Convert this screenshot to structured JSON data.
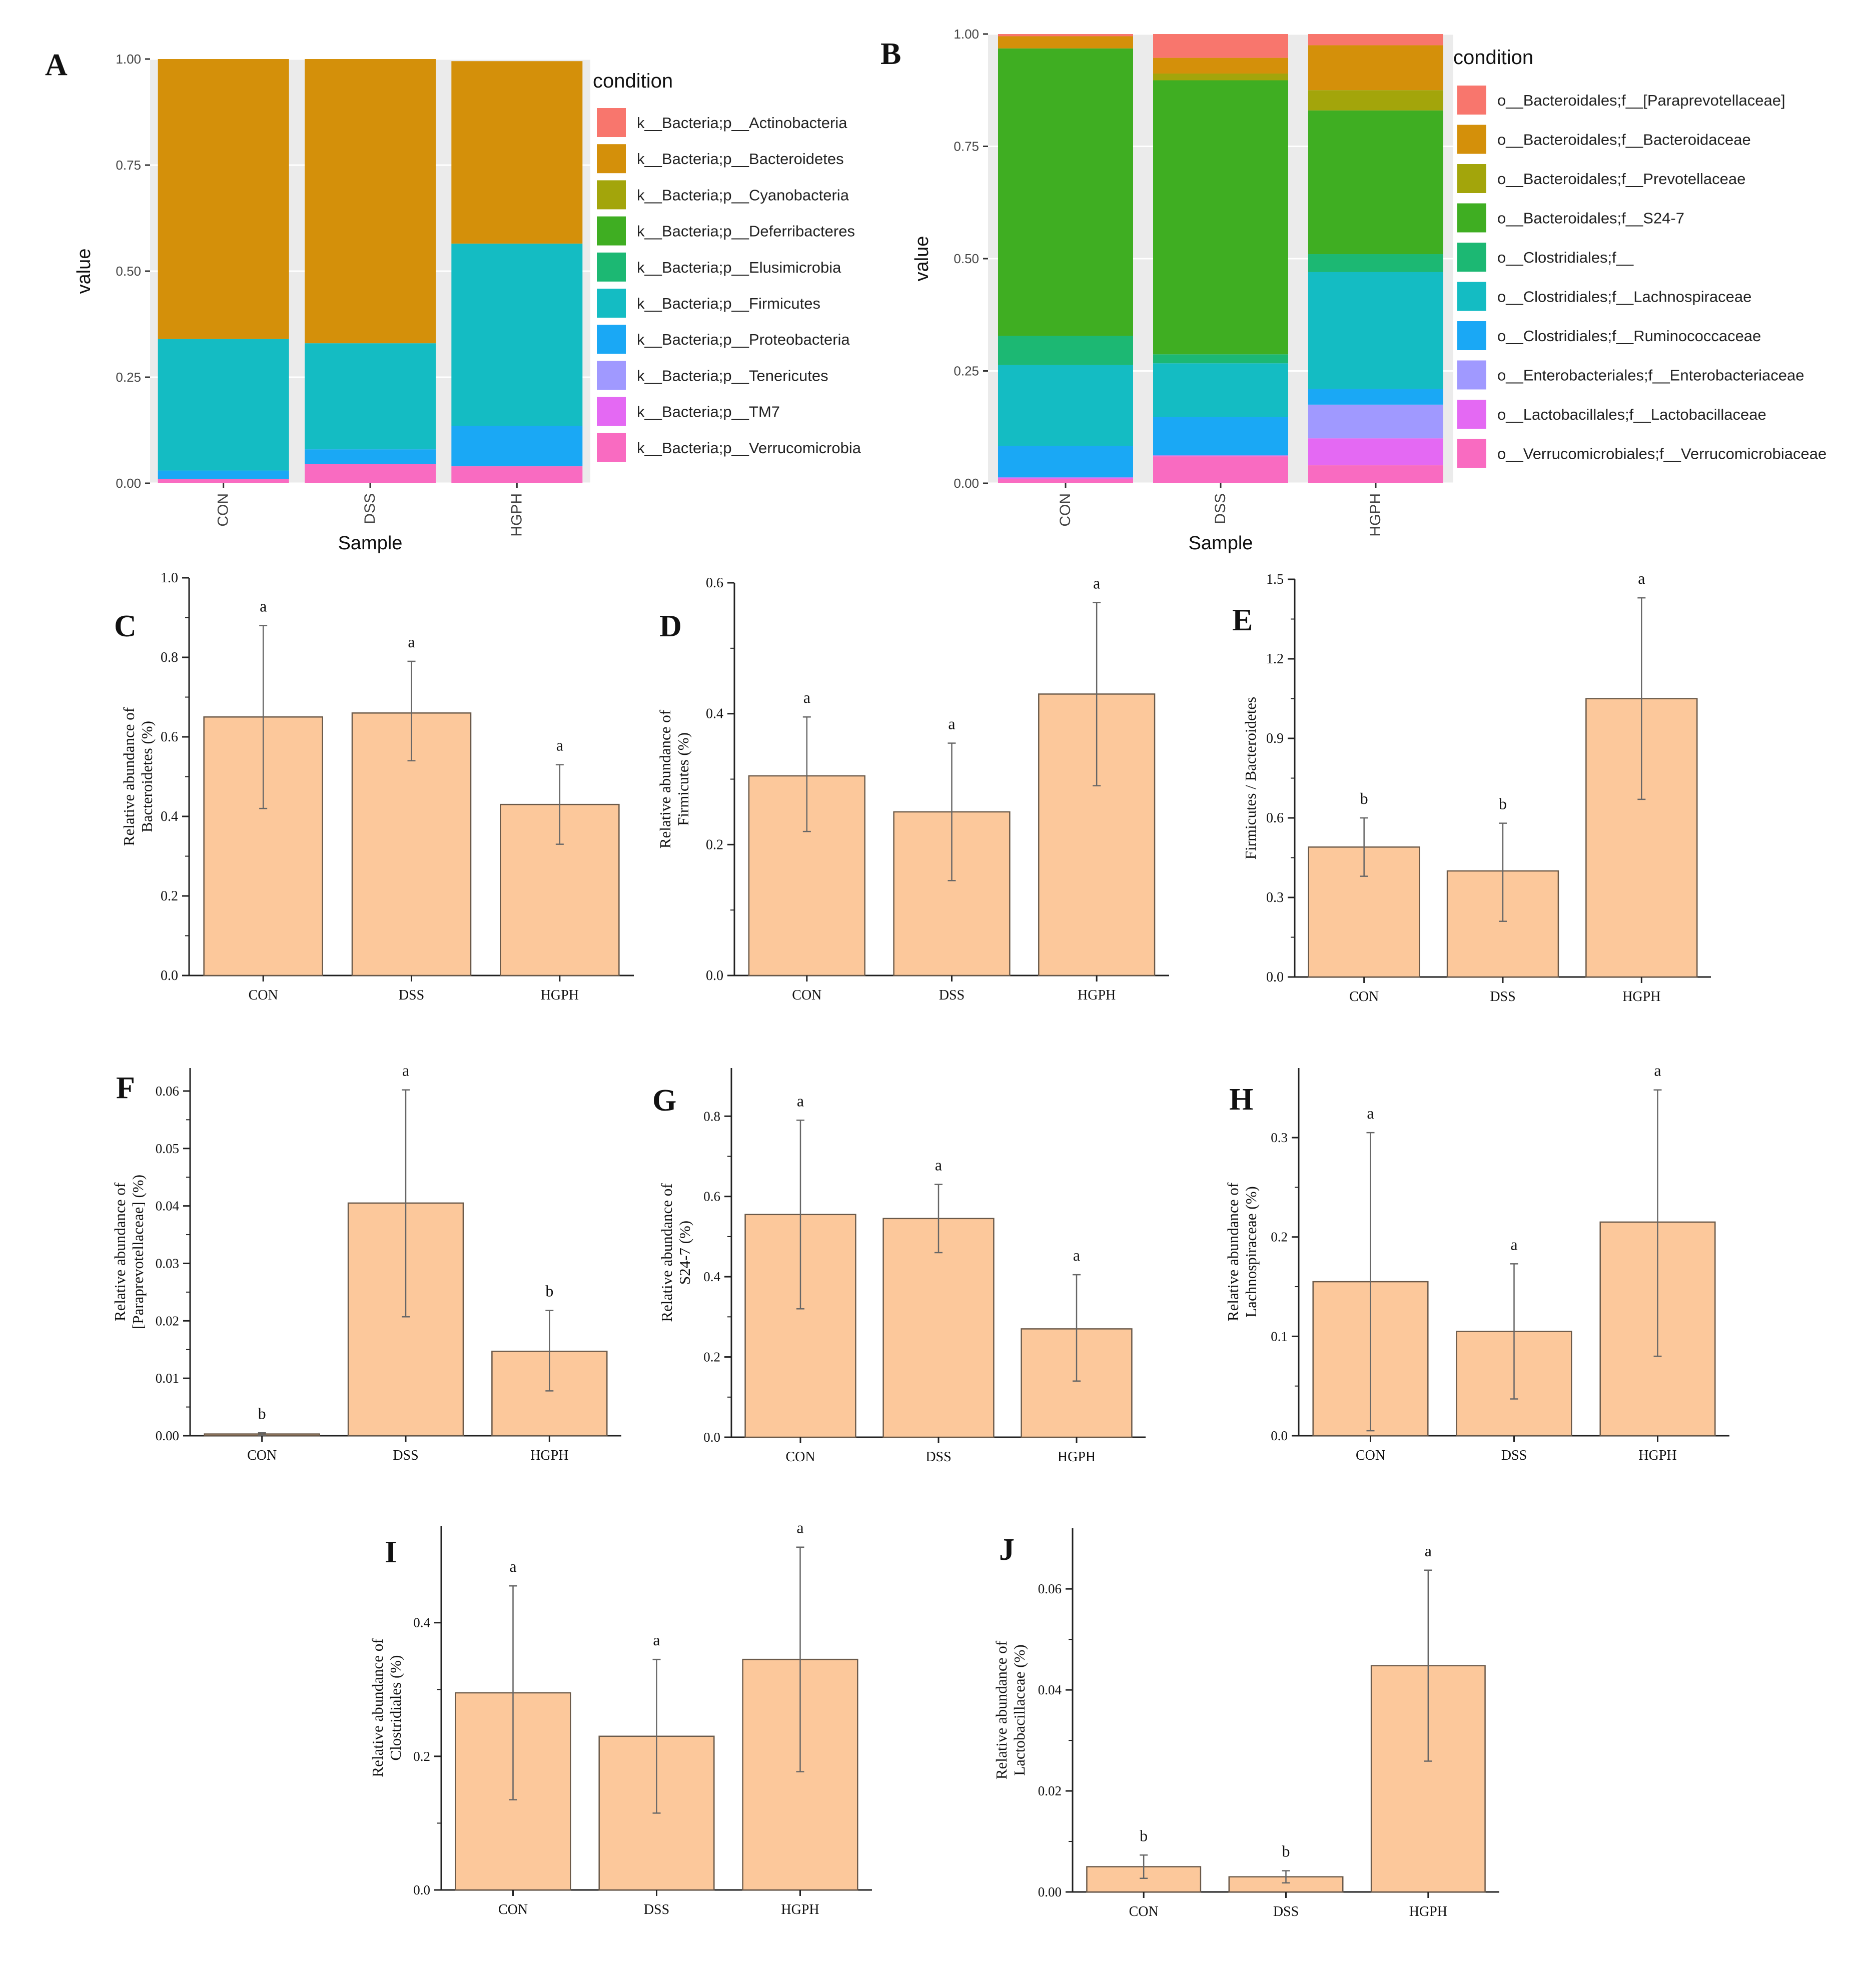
{
  "colors": {
    "orange_bar": "#fcc89b",
    "bar_edge": "#6b5a4a",
    "axis": "#222222"
  },
  "chart_data": [
    {
      "id": "A",
      "type": "stacked-bar",
      "panel_label": "A",
      "xlabel": "Sample",
      "ylabel": "value",
      "ylim": [
        0,
        1
      ],
      "yticks": [
        "0.00",
        "0.25",
        "0.50",
        "0.75",
        "1.00"
      ],
      "categories": [
        "CON",
        "DSS",
        "HGPH"
      ],
      "legend_title": "condition",
      "series": [
        {
          "name": "k__Bacteria;p__Verrucomicrobia",
          "color": "#f96bc1",
          "values": [
            0.01,
            0.045,
            0.04
          ]
        },
        {
          "name": "k__Bacteria;p__TM7",
          "color": "#e469f3",
          "values": [
            0.0,
            0.0,
            0.0
          ]
        },
        {
          "name": "k__Bacteria;p__Tenericutes",
          "color": "#a099ff",
          "values": [
            0.0,
            0.0,
            0.0
          ]
        },
        {
          "name": "k__Bacteria;p__Proteobacteria",
          "color": "#1aa8f5",
          "values": [
            0.02,
            0.035,
            0.095
          ]
        },
        {
          "name": "k__Bacteria;p__Firmicutes",
          "color": "#14bcc3",
          "values": [
            0.31,
            0.25,
            0.43
          ]
        },
        {
          "name": "k__Bacteria;p__Elusimicrobia",
          "color": "#1cb873",
          "values": [
            0.0,
            0.0,
            0.0
          ]
        },
        {
          "name": "k__Bacteria;p__Deferribacteres",
          "color": "#3fae22",
          "values": [
            0.0,
            0.0,
            0.0
          ]
        },
        {
          "name": "k__Bacteria;p__Cyanobacteria",
          "color": "#a3a50b",
          "values": [
            0.0,
            0.0,
            0.0
          ]
        },
        {
          "name": "k__Bacteria;p__Bacteroidetes",
          "color": "#d4900a",
          "values": [
            0.66,
            0.67,
            0.43
          ]
        },
        {
          "name": "k__Bacteria;p__Actinobacteria",
          "color": "#f8766d",
          "values": [
            0.0,
            0.0,
            0.0
          ]
        }
      ]
    },
    {
      "id": "B",
      "type": "stacked-bar",
      "panel_label": "B",
      "xlabel": "Sample",
      "ylabel": "value",
      "ylim": [
        0,
        1
      ],
      "yticks": [
        "0.00",
        "0.25",
        "0.50",
        "0.75",
        "1.00"
      ],
      "categories": [
        "CON",
        "DSS",
        "HGPH"
      ],
      "legend_title": "condition",
      "series": [
        {
          "name": "o__Verrucomicrobiales;f__Verrucomicrobiaceae",
          "color": "#f96bc1",
          "values": [
            0.01,
            0.06,
            0.04
          ]
        },
        {
          "name": "o__Lactobacillales;f__Lactobacillaceae",
          "color": "#e469f3",
          "values": [
            0.003,
            0.002,
            0.06
          ]
        },
        {
          "name": "o__Enterobacteriales;f__Enterobacteriaceae",
          "color": "#a099ff",
          "values": [
            0.0,
            0.0,
            0.075
          ]
        },
        {
          "name": "o__Clostridiales;f__Ruminococcaceae",
          "color": "#1aa8f5",
          "values": [
            0.07,
            0.085,
            0.035
          ]
        },
        {
          "name": "o__Clostridiales;f__Lachnospiraceae",
          "color": "#14bcc3",
          "values": [
            0.18,
            0.12,
            0.26
          ]
        },
        {
          "name": "o__Clostridiales;f__",
          "color": "#1cb873",
          "values": [
            0.065,
            0.02,
            0.04
          ]
        },
        {
          "name": "o__Bacteroidales;f__S24-7",
          "color": "#3fae22",
          "values": [
            0.64,
            0.61,
            0.32
          ]
        },
        {
          "name": "o__Bacteroidales;f__Prevotellaceae",
          "color": "#a3a50b",
          "values": [
            0.0,
            0.015,
            0.045
          ]
        },
        {
          "name": "o__Bacteroidales;f__Bacteroidaceae",
          "color": "#d4900a",
          "values": [
            0.027,
            0.035,
            0.1
          ]
        },
        {
          "name": "o__Bacteroidales;f__[Paraprevotellaceae]",
          "color": "#f8766d",
          "values": [
            0.005,
            0.053,
            0.025
          ]
        }
      ]
    },
    {
      "id": "C",
      "type": "bar",
      "panel_label": "C",
      "ylabel": [
        "Relative abundance of",
        "Bacteroidetes (%)"
      ],
      "ylim": [
        0,
        1.0
      ],
      "yticks": [
        "0.0",
        "0.2",
        "0.4",
        "0.6",
        "0.8",
        "1.0"
      ],
      "categories": [
        "CON",
        "DSS",
        "HGPH"
      ],
      "values": [
        0.65,
        0.66,
        0.43
      ],
      "err_high": [
        0.88,
        0.79,
        0.53
      ],
      "err_low": [
        0.42,
        0.54,
        0.33
      ],
      "letters": [
        "a",
        "a",
        "a"
      ]
    },
    {
      "id": "D",
      "type": "bar",
      "panel_label": "D",
      "ylabel": [
        "Relative abundance of",
        "Firmicutes (%)"
      ],
      "ylim": [
        0,
        0.6
      ],
      "yticks": [
        "0.0",
        "0.2",
        "0.4",
        "0.6"
      ],
      "categories": [
        "CON",
        "DSS",
        "HGPH"
      ],
      "values": [
        0.305,
        0.25,
        0.43
      ],
      "err_high": [
        0.395,
        0.355,
        0.57
      ],
      "err_low": [
        0.22,
        0.145,
        0.29
      ],
      "letters": [
        "a",
        "a",
        "a"
      ]
    },
    {
      "id": "E",
      "type": "bar",
      "panel_label": "E",
      "ylabel": [
        "Firmicutes / Bacteroidetes"
      ],
      "ylim": [
        0,
        1.5
      ],
      "yticks": [
        "0.0",
        "0.3",
        "0.6",
        "0.9",
        "1.2",
        "1.5"
      ],
      "categories": [
        "CON",
        "DSS",
        "HGPH"
      ],
      "values": [
        0.49,
        0.4,
        1.05
      ],
      "err_high": [
        0.6,
        0.58,
        1.43
      ],
      "err_low": [
        0.38,
        0.21,
        0.67
      ],
      "letters": [
        "b",
        "b",
        "a"
      ]
    },
    {
      "id": "F",
      "type": "bar",
      "panel_label": "F",
      "ylabel": [
        "Relative abundance of",
        "[Paraprevotellaceae] (%)"
      ],
      "ylim": [
        0,
        0.064
      ],
      "yticks": [
        "0.00",
        "0.01",
        "0.02",
        "0.03",
        "0.04",
        "0.05",
        "0.06"
      ],
      "categories": [
        "CON",
        "DSS",
        "HGPH"
      ],
      "values": [
        0.0003,
        0.0405,
        0.0147
      ],
      "err_high": [
        0.0005,
        0.0602,
        0.0218
      ],
      "err_low": [
        0.0001,
        0.0207,
        0.0078
      ],
      "letters": [
        "b",
        "a",
        "b"
      ]
    },
    {
      "id": "G",
      "type": "bar",
      "panel_label": "G",
      "ylabel": [
        "Relative abundance of",
        "S24-7 (%)"
      ],
      "ylim": [
        0,
        0.92
      ],
      "yticks": [
        "0.0",
        "0.2",
        "0.4",
        "0.6",
        "0.8"
      ],
      "categories": [
        "CON",
        "DSS",
        "HGPH"
      ],
      "values": [
        0.555,
        0.545,
        0.27
      ],
      "err_high": [
        0.79,
        0.63,
        0.405
      ],
      "err_low": [
        0.32,
        0.46,
        0.14
      ],
      "letters": [
        "a",
        "a",
        "a"
      ]
    },
    {
      "id": "H",
      "type": "bar",
      "panel_label": "H",
      "ylabel": [
        "Relative abundance of",
        "Lachnospiraceae (%)"
      ],
      "ylim": [
        0,
        0.37
      ],
      "yticks": [
        "0.0",
        "0.1",
        "0.2",
        "0.3"
      ],
      "categories": [
        "CON",
        "DSS",
        "HGPH"
      ],
      "values": [
        0.155,
        0.105,
        0.215
      ],
      "err_high": [
        0.305,
        0.173,
        0.348
      ],
      "err_low": [
        0.005,
        0.037,
        0.08
      ],
      "letters": [
        "a",
        "a",
        "a"
      ]
    },
    {
      "id": "I",
      "type": "bar",
      "panel_label": "I",
      "ylabel": [
        "Relative abundance of",
        "Clostridiales (%)"
      ],
      "ylim": [
        0,
        0.545
      ],
      "yticks": [
        "0.0",
        "0.2",
        "0.4"
      ],
      "categories": [
        "CON",
        "DSS",
        "HGPH"
      ],
      "values": [
        0.295,
        0.23,
        0.345
      ],
      "err_high": [
        0.455,
        0.345,
        0.513
      ],
      "err_low": [
        0.135,
        0.115,
        0.177
      ],
      "letters": [
        "a",
        "a",
        "a"
      ]
    },
    {
      "id": "J",
      "type": "bar",
      "panel_label": "J",
      "ylabel": [
        "Relative abundance of",
        "Lactobacillaceae (%)"
      ],
      "ylim": [
        0,
        0.072
      ],
      "yticks": [
        "0.00",
        "0.02",
        "0.04",
        "0.06"
      ],
      "categories": [
        "CON",
        "DSS",
        "HGPH"
      ],
      "values": [
        0.005,
        0.003,
        0.0448
      ],
      "err_high": [
        0.0073,
        0.0042,
        0.0637
      ],
      "err_low": [
        0.0027,
        0.0018,
        0.0259
      ],
      "letters": [
        "b",
        "b",
        "a"
      ]
    }
  ]
}
